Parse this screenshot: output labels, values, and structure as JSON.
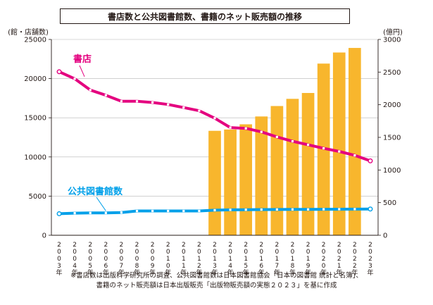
{
  "chart_data": {
    "type": "bar+line",
    "title": "書店数と公共図書館数、書籍のネット販売額の推移",
    "left_axis_unit": "(館・店舗数)",
    "right_axis_unit": "(億円)",
    "left_ylim": [
      0,
      25000
    ],
    "left_ticks": [
      "0",
      "5000",
      "10000",
      "15000",
      "20000",
      "25000"
    ],
    "right_ylim": [
      0,
      3000
    ],
    "right_ticks": [
      "0",
      "500",
      "1000",
      "1500",
      "2000",
      "2500",
      "3000"
    ],
    "categories": [
      "2003年",
      "2004年",
      "2005年",
      "2006年",
      "2007年",
      "2008年",
      "2009年",
      "2010年",
      "2011年",
      "2012年",
      "2013年",
      "2014年",
      "2015年",
      "2016年",
      "2017年",
      "2018年",
      "2019年",
      "2020年",
      "2021年",
      "2022年",
      "2023年"
    ],
    "series": [
      {
        "name": "書店",
        "type": "line",
        "axis": "left",
        "color": "#e4007f",
        "values": [
          20880,
          19980,
          18540,
          17880,
          17100,
          17100,
          16950,
          16700,
          16300,
          15900,
          14950,
          13750,
          13650,
          13200,
          12550,
          12000,
          11550,
          11100,
          10700,
          10200,
          9500
        ]
      },
      {
        "name": "公共図書館数",
        "type": "line",
        "axis": "left",
        "color": "#00a0e9",
        "values": [
          2750,
          2820,
          2850,
          2850,
          2900,
          3100,
          3100,
          3100,
          3100,
          3100,
          3200,
          3250,
          3260,
          3280,
          3290,
          3300,
          3300,
          3320,
          3330,
          3340,
          3350
        ]
      },
      {
        "type": "bar",
        "axis": "right",
        "color": "#f8b62d",
        "values": [
          null,
          null,
          null,
          null,
          null,
          null,
          null,
          null,
          null,
          null,
          1600,
          1620,
          1700,
          1820,
          1980,
          2090,
          2180,
          2630,
          2800,
          2870,
          null
        ]
      }
    ],
    "notes": [
      "※書店数は出版科学研究所の調査、公共図書館数は日本図書館協会「日本の図書館 統計と名簿」、",
      "書籍のネット販売額は日本出版販売「出版物販売額の実態２０２３」を基に作成"
    ]
  }
}
